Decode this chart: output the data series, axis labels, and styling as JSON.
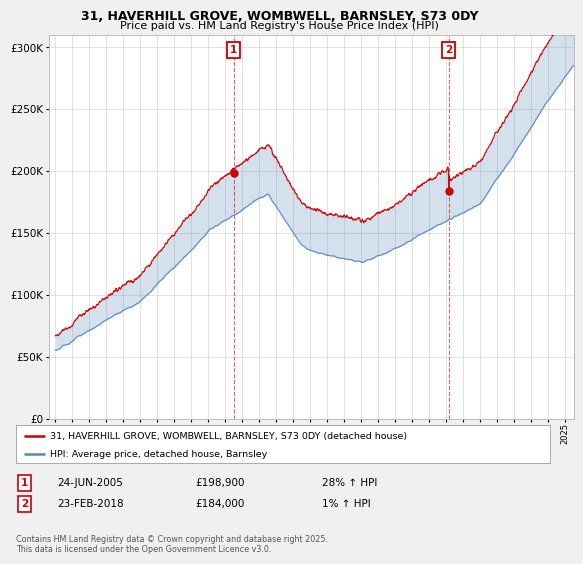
{
  "title_line1": "31, HAVERHILL GROVE, WOMBWELL, BARNSLEY, S73 0DY",
  "title_line2": "Price paid vs. HM Land Registry's House Price Index (HPI)",
  "red_label": "31, HAVERHILL GROVE, WOMBWELL, BARNSLEY, S73 0DY (detached house)",
  "blue_label": "HPI: Average price, detached house, Barnsley",
  "sale1_date": "24-JUN-2005",
  "sale1_price": "£198,900",
  "sale1_hpi": "28% ↑ HPI",
  "sale2_date": "23-FEB-2018",
  "sale2_price": "£184,000",
  "sale2_hpi": "1% ↑ HPI",
  "footer": "Contains HM Land Registry data © Crown copyright and database right 2025.\nThis data is licensed under the Open Government Licence v3.0.",
  "ylim": [
    0,
    310000
  ],
  "yticks": [
    0,
    50000,
    100000,
    150000,
    200000,
    250000,
    300000
  ],
  "sale1_x": 2005.48,
  "sale2_x": 2018.14,
  "bg_color": "#f0f0f0",
  "plot_bg_color": "#ffffff",
  "red_color": "#cc0000",
  "blue_color": "#5588bb",
  "fill_color": "#ddeeff"
}
